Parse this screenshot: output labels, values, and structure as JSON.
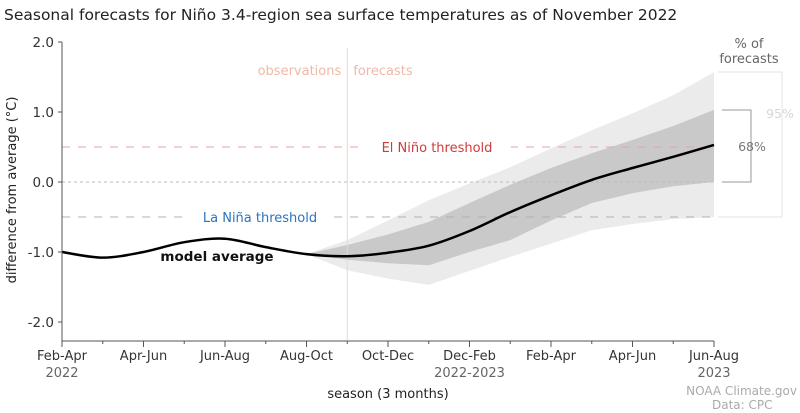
{
  "chart_data": {
    "type": "line",
    "title": "Seasonal forecasts for Niño 3.4-region sea surface temperatures as of November 2022",
    "xlabel": "season (3 months)",
    "ylabel": "difference from average (°C)",
    "ylim": [
      -2.3,
      2.0
    ],
    "yticks": [
      "2.0",
      "1.0",
      "0.0",
      "-1.0",
      "-2.0"
    ],
    "ytick_values": [
      2,
      1,
      0,
      -1,
      -2
    ],
    "x_tick_labels": [
      {
        "label": "Feb-Apr",
        "sub": "2022",
        "index": 0
      },
      {
        "label": "Apr-Jun",
        "sub": "",
        "index": 2
      },
      {
        "label": "Jun-Aug",
        "sub": "",
        "index": 4
      },
      {
        "label": "Aug-Oct",
        "sub": "",
        "index": 6
      },
      {
        "label": "Oct-Dec",
        "sub": "",
        "index": 8
      },
      {
        "label": "Dec-Feb",
        "sub": "2022-2023",
        "index": 10
      },
      {
        "label": "Feb-Apr",
        "sub": "",
        "index": 12
      },
      {
        "label": "Apr-Jun",
        "sub": "",
        "index": 14
      },
      {
        "label": "Jun-Aug",
        "sub": "2023",
        "index": 16
      }
    ],
    "season_count": 17,
    "observed_until_index": 6,
    "series": [
      {
        "name": "model average",
        "color": "#000000",
        "values": [
          -1.0,
          -1.08,
          -1.0,
          -0.86,
          -0.81,
          -0.93,
          -1.03,
          -1.06,
          -1.01,
          -0.91,
          -0.7,
          -0.43,
          -0.19,
          0.03,
          0.2,
          0.36,
          0.53
        ]
      }
    ],
    "bands": [
      {
        "label": "95%",
        "color": "#ebebeb",
        "start_index": 6,
        "lower": [
          -1.03,
          -1.26,
          -1.38,
          -1.47,
          -1.27,
          -1.07,
          -0.88,
          -0.69,
          -0.6,
          -0.53,
          -0.5
        ],
        "upper": [
          -1.03,
          -0.83,
          -0.55,
          -0.26,
          -0.02,
          0.21,
          0.48,
          0.74,
          0.98,
          1.24,
          1.57
        ]
      },
      {
        "label": "68%",
        "color": "#c9c9c9",
        "start_index": 6,
        "lower": [
          -1.03,
          -1.11,
          -1.16,
          -1.19,
          -1.0,
          -0.83,
          -0.55,
          -0.3,
          -0.16,
          -0.06,
          0.0
        ],
        "upper": [
          -1.03,
          -0.9,
          -0.75,
          -0.57,
          -0.3,
          -0.04,
          0.2,
          0.41,
          0.6,
          0.8,
          1.03
        ]
      }
    ],
    "thresholds": [
      {
        "label": "El Niño threshold",
        "value": 0.5,
        "color": "#d03a3a",
        "line_color": "#e9a5a5"
      },
      {
        "label": "La Niña threshold",
        "value": -0.5,
        "color": "#2a74c0",
        "line_color": "#b0b0b0"
      }
    ],
    "annotations": {
      "observations": "observations",
      "forecasts": "forecasts",
      "model_average": "model average",
      "legend_title_1": "% of",
      "legend_title_2": "forecasts",
      "pct_95": "95%",
      "pct_68": "68%"
    },
    "credit_1": "NOAA Climate.gov",
    "credit_2": "Data: CPC",
    "grid": false
  }
}
